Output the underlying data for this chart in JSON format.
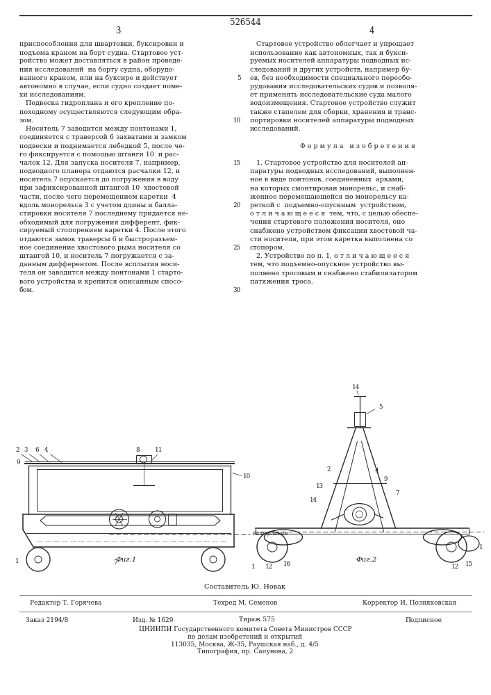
{
  "patent_number": "526544",
  "page_left": "3",
  "page_right": "4",
  "line_numbers": [
    5,
    10,
    15,
    20,
    25,
    30
  ],
  "col_left_lines": [
    "приспособления для швартовки, буксировки и",
    "подъема краном на борт судна. Стартовое уст-",
    "ройство может доставляться в район проведе-",
    "ния исследований  на борту судна, оборудо-",
    "ванного краном, или на буксире и действует",
    "автономно в случае, если судно создает поме-",
    "хи исследованиям.",
    "   Подвеска гидроплана и его крепление по-",
    "походному осуществляются следующим обра-",
    "зом.",
    "   Носитель 7 заводится между понтонами 1,",
    "соединяется с траверсой 6 захватами и замком",
    "подвески и поднимается лебедкой 5, после че-",
    "го фиксируется с помощью штанги 10  и рас-",
    "чалок 12. Для запуска носителя 7, например,",
    "подводного планера отдаются расчалки 12, и",
    "носитель 7 опускается до погружения в воду",
    "при зафиксированной штангой 10  хвостовой",
    "части, после чего перемещением каретки  4",
    "вдоль монорельса 3 с учетом длины и балла-",
    "стировки носителя 7 последнему придается не-",
    "обходимый для погружения дифферент, фик-",
    "сируемый стопорением каретки 4. После этого",
    "отдаются замок траверсы 6 и быстроразъем-",
    "ное соединение хвостового рыма носителя со",
    "штангой 10, и носитель 7 погружается с за-",
    "данным дифферентом. После всплытия носи-",
    "теля он заводится между понтонами 1 старто-",
    "вого устройства и крепится описанным спосо-",
    "бом."
  ],
  "col_right_lines": [
    "   Стартовое устройство облегчает и упрощает",
    "использование как автономных, так и букси-",
    "руемых носителей аппаратуры подводных ис-",
    "следований и других устройств, например бу-",
    "ев, без необходимости специального переобо-",
    "рудования исследовательских судов и позволя-",
    "ет применять исследовательские суда малого",
    "водоизмещения. Стартовое устройство служит",
    "также стапелем для сборки, хранения и транс-",
    "портировки носителей аппаратуры подводных",
    "исследований.",
    "",
    "   Ф о р м у л а   и з о б р е т е н и я",
    "",
    "   1. Стартовое устройство для носителей ап-",
    "паратуры подводных исследований, выполнен-",
    "ное в виде понтонов, соединенных  арками,",
    "на которых смонтирован монорельс, и снаб-",
    "женное перемещающейся по монорельсу ка-",
    "реткой с  подъемно-опускным  устройством,",
    "о т л и ч а ю щ е е с я  тем, что, с целью обеспе-",
    "чения стартового положения носителя, оно",
    "снабжено устройством фиксации хвостовой ча-",
    "сти носителя, при этом каретка выполнена со",
    "стопором.",
    "   2. Устройство по п. 1, о т л и ч а ю щ е е с я",
    "тем, что подъемно-опускное устройство вы-",
    "полнено тросовым и снабжено стабилизатором",
    "патяжения троса."
  ],
  "sestavitel": "Составитель Ю. Новак",
  "editor_label": "Редактор Т. Горячева",
  "tehred_label": "Техред М. Семенов",
  "korrektor_label": "Корректор И. Позняковская",
  "zakaz": "Заказ 2194/8",
  "izd": "Изд. № 1629",
  "tirazh": "Тираж 575",
  "podpisnoe": "Подписное",
  "tsniipi": "ЦНИИПИ Государственного комитета Совета Министров СССР",
  "tsniipi2": "по делам изобретений и открытий",
  "address": "113035, Москва, Ж-35, Раушская наб., д. 4/5",
  "tipografiya": "Типография, пр. Сапунова, 2",
  "bg_color": "#ffffff",
  "text_color": "#1a1a1a",
  "line_color": "#1a1a1a"
}
